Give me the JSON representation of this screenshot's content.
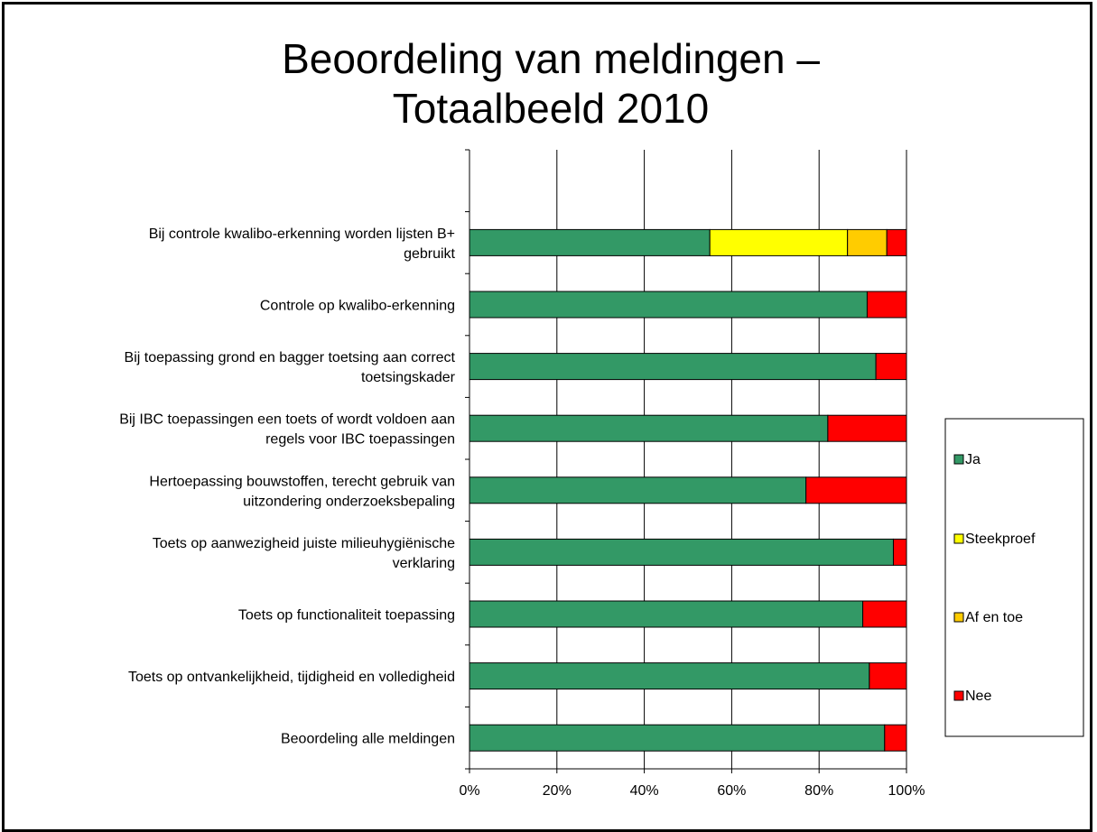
{
  "chart_data": {
    "type": "bar",
    "orientation": "horizontal",
    "stacked": true,
    "percent_stacked": true,
    "title": "Beoordeling van meldingen – Totaalbeeld 2010",
    "title_lines": [
      "Beoordeling van meldingen –",
      "Totaalbeeld 2010"
    ],
    "categories": [
      [
        "Bij controle kwalibo-erkenning worden lijsten B+",
        "gebruikt"
      ],
      [
        "Controle op kwalibo-erkenning"
      ],
      [
        "Bij toepassing grond en bagger toetsing aan correct",
        "toetsingskader"
      ],
      [
        "Bij IBC toepassingen een toets of wordt voldoen aan",
        "regels voor IBC toepassingen"
      ],
      [
        "Hertoepassing bouwstoffen, terecht gebruik van",
        "uitzondering onderzoeksbepaling"
      ],
      [
        "Toets op aanwezigheid juiste milieuhygiënische",
        "verklaring"
      ],
      [
        "Toets op functionaliteit toepassing"
      ],
      [
        "Toets op ontvankelijkheid, tijdigheid en volledigheid"
      ],
      [
        "Beoordeling alle meldingen"
      ]
    ],
    "series": [
      {
        "name": "Ja",
        "color": "#339966",
        "values": [
          55,
          91,
          93,
          82,
          77,
          97,
          90,
          91.5,
          95
        ]
      },
      {
        "name": "Steekproef",
        "color": "#ffff00",
        "values": [
          31.5,
          0,
          0,
          0,
          0,
          0,
          0,
          0,
          0
        ]
      },
      {
        "name": "Af en toe",
        "color": "#ffcc00",
        "values": [
          9,
          0,
          0,
          0,
          0,
          0,
          0,
          0,
          0
        ]
      },
      {
        "name": "Nee",
        "color": "#ff0000",
        "values": [
          4.5,
          9,
          7,
          18,
          23,
          3,
          10,
          8.5,
          5
        ]
      }
    ],
    "x_ticks": [
      "0%",
      "20%",
      "40%",
      "60%",
      "80%",
      "100%"
    ],
    "xlim": [
      0,
      100
    ],
    "grid": true,
    "legend_position": "right"
  }
}
